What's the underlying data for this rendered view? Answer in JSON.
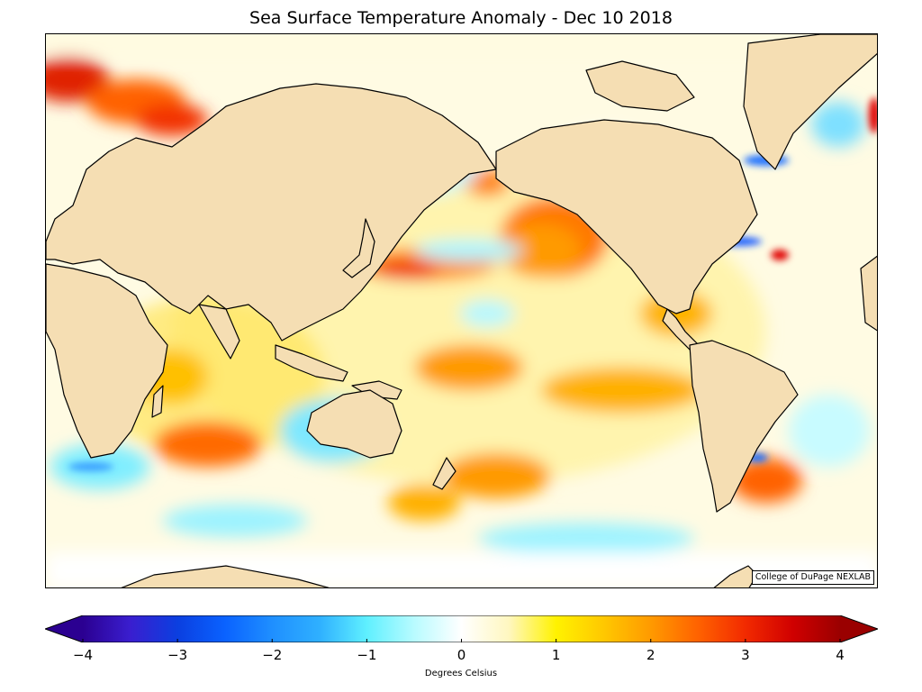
{
  "title": "Sea Surface Temperature Anomaly - Dec 10 2018",
  "credit": "College of DuPage NEXLAB",
  "colorbar": {
    "label": "Degrees Celsius",
    "min": -4,
    "max": 4,
    "extend": "both",
    "ticks": [
      {
        "value": -4,
        "label": "−4"
      },
      {
        "value": -3,
        "label": "−3"
      },
      {
        "value": -2,
        "label": "−2"
      },
      {
        "value": -1,
        "label": "−1"
      },
      {
        "value": 0,
        "label": "0"
      },
      {
        "value": 1,
        "label": "1"
      },
      {
        "value": 2,
        "label": "2"
      },
      {
        "value": 3,
        "label": "3"
      },
      {
        "value": 4,
        "label": "4"
      }
    ],
    "colors": [
      "#2b0091",
      "#3a1ecf",
      "#0b3fe0",
      "#0a62ff",
      "#1f8fff",
      "#2fb0ff",
      "#5ff0ff",
      "#b8fbff",
      "#ffffff",
      "#fff7c0",
      "#fff200",
      "#ffc800",
      "#ff9a00",
      "#ff6200",
      "#f22a00",
      "#d00000",
      "#9a0000"
    ]
  },
  "colors": {
    "land": "#f5deb3",
    "coastline": "#000000",
    "borders": "#8a8a8a",
    "ocean_neutral": "#ffffff"
  }
}
